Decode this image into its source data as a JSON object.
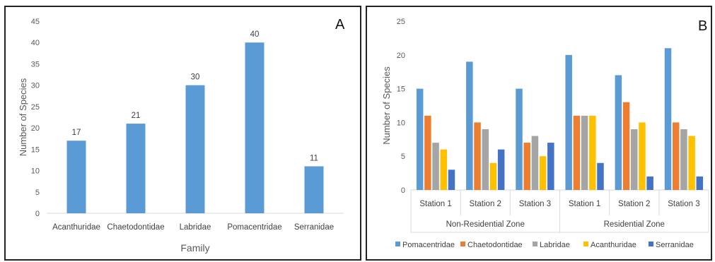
{
  "chart_data": [
    {
      "panel": "A",
      "type": "bar",
      "categories": [
        "Acanthuridae",
        "Chaetodontidae",
        "Labridae",
        "Pomacentridae",
        "Serranidae"
      ],
      "values": [
        17,
        21,
        30,
        40,
        11
      ],
      "data_labels": [
        "17",
        "21",
        "30",
        "40",
        "11"
      ],
      "xlabel": "Family",
      "ylabel": "Number of Species",
      "ylim": [
        0,
        45
      ],
      "yticks": [
        "0",
        "5",
        "10",
        "15",
        "20",
        "25",
        "30",
        "35",
        "40",
        "45"
      ],
      "grid": false,
      "color": "#5B9BD5"
    },
    {
      "panel": "B",
      "type": "bar",
      "groups": [
        {
          "name": "Non-Residential Zone",
          "categories": [
            "Station 1",
            "Station 2",
            "Station 3"
          ]
        },
        {
          "name": "Residential Zone",
          "categories": [
            "Station 1",
            "Station 2",
            "Station 3"
          ]
        }
      ],
      "series": [
        {
          "name": "Pomacentridae",
          "color": "#5B9BD5",
          "values": [
            15,
            19,
            15,
            20,
            17,
            21
          ]
        },
        {
          "name": "Chaetodontidae",
          "color": "#ED7D31",
          "values": [
            11,
            10,
            7,
            11,
            13,
            10
          ]
        },
        {
          "name": "Labridae",
          "color": "#A5A5A5",
          "values": [
            7,
            9,
            8,
            11,
            9,
            9
          ]
        },
        {
          "name": "Acanthuridae",
          "color": "#FFC000",
          "values": [
            6,
            4,
            5,
            11,
            10,
            8
          ]
        },
        {
          "name": "Serranidae",
          "color": "#4472C4",
          "values": [
            3,
            6,
            7,
            4,
            2,
            2
          ]
        }
      ],
      "ylabel": "Number of Species",
      "ylim": [
        0,
        25
      ],
      "yticks": [
        "0",
        "5",
        "10",
        "15",
        "20",
        "25"
      ],
      "legend": "bottom",
      "grid": false
    }
  ],
  "panel_labels": {
    "a": "A",
    "b": "B"
  }
}
